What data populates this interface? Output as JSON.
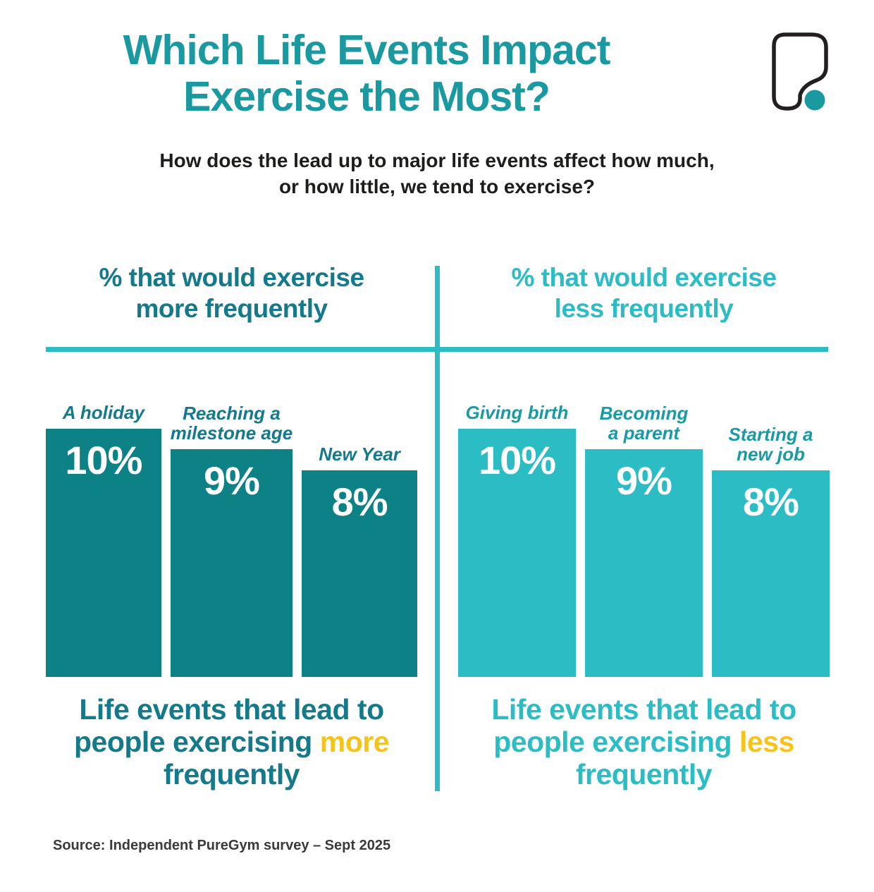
{
  "title": {
    "line1": "Which Life Events Impact",
    "line2": "Exercise the Most?"
  },
  "subtitle": {
    "line1": "How does the lead up to major life events affect how much,",
    "line2": "or how little, we tend to exercise?"
  },
  "logo": {
    "name": "PureGym logo",
    "outline_color": "#231f20",
    "dot_color": "#1a9aa0"
  },
  "colors": {
    "title_teal": "#1a9aa0",
    "dark_teal_text": "#14798a",
    "dark_teal_bar": "#0c8287",
    "light_teal": "#2bbcc4",
    "light_teal_label": "#1a9ba4",
    "highlight_yellow": "#f6c418",
    "divider": "#2bbcc4",
    "background": "#ffffff"
  },
  "columns": [
    {
      "header_line1": "% that would exercise",
      "header_line2": "more frequently",
      "caption_line1": "Life events that lead to",
      "caption_line2_prefix": "people exercising ",
      "caption_highlight": "more",
      "caption_line3": "frequently"
    },
    {
      "header_line1": "% that would exercise",
      "header_line2": "less frequently",
      "caption_line1": "Life events that lead to",
      "caption_line2_prefix": "people exercising ",
      "caption_highlight": "less",
      "caption_line3": "frequently"
    }
  ],
  "chart_data": [
    {
      "type": "bar",
      "title": "% that would exercise more frequently",
      "categories": [
        "A holiday",
        "Reaching a milestone age",
        "New Year"
      ],
      "category_lines": [
        [
          "A holiday"
        ],
        [
          "Reaching a",
          "milestone age"
        ],
        [
          "New Year"
        ]
      ],
      "values": [
        10,
        9,
        8
      ],
      "value_labels": [
        "10%",
        "9%",
        "8%"
      ],
      "unit": "percent",
      "bar_color": "#0c8287",
      "caption": "Life events that lead to people exercising more frequently",
      "highlight_word": "more",
      "legend": "none",
      "grid": "off"
    },
    {
      "type": "bar",
      "title": "% that would exercise less frequently",
      "categories": [
        "Giving birth",
        "Becoming a parent",
        "Starting a new job"
      ],
      "category_lines": [
        [
          "Giving birth"
        ],
        [
          "Becoming",
          "a parent"
        ],
        [
          "Starting a",
          "new job"
        ]
      ],
      "values": [
        10,
        9,
        8
      ],
      "value_labels": [
        "10%",
        "9%",
        "8%"
      ],
      "unit": "percent",
      "bar_color": "#2bbcc4",
      "caption": "Life events that lead to people exercising less frequently",
      "highlight_word": "less",
      "legend": "none",
      "grid": "off"
    }
  ],
  "source": "Source: Independent PureGym survey – Sept 2025"
}
